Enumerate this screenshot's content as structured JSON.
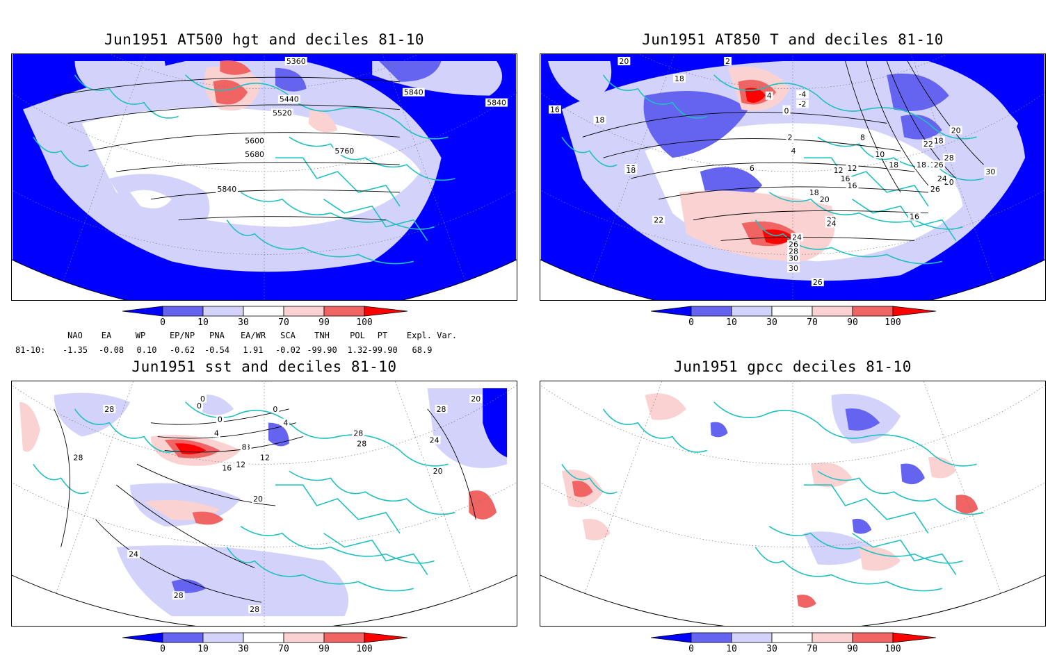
{
  "panels": [
    {
      "title": "Jun1951 AT500 hgt and deciles 81-10",
      "contour_labels": [
        "5360",
        "5440",
        "5520",
        "5600",
        "5680",
        "5760",
        "5840",
        "5840",
        "5840"
      ]
    },
    {
      "title": "Jun1951 AT850 T and deciles 81-10",
      "contour_labels": [
        "20",
        "18",
        "16",
        "18",
        "2",
        "4",
        "2",
        "-4",
        "-2",
        "0",
        "2",
        "4",
        "6",
        "8",
        "10",
        "12",
        "12",
        "16",
        "16",
        "18",
        "20",
        "22",
        "24",
        "26",
        "28",
        "30",
        "30",
        "26",
        "24",
        "22",
        "20",
        "18",
        "18",
        "16",
        "20",
        "26",
        "30",
        "28",
        "26",
        "24",
        "28",
        "22",
        "16",
        "18",
        "18"
      ]
    },
    {
      "title": "Jun1951 sst and deciles 81-10",
      "contour_labels": [
        "28",
        "28",
        "0",
        "0",
        "0",
        "4",
        "8",
        "12",
        "16",
        "20",
        "24",
        "28",
        "28",
        "28",
        "28",
        "20",
        "20",
        "24",
        "28",
        "4",
        "8",
        "12",
        "0"
      ]
    },
    {
      "title": "Jun1951 gpcc deciles 81-10",
      "contour_labels": []
    }
  ],
  "colorbar": {
    "ticks": [
      "0",
      "10",
      "30",
      "70",
      "90",
      "100"
    ],
    "colors": [
      "#0000ff",
      "#6464f0",
      "#d2d2fa",
      "#ffffff",
      "#fad2d2",
      "#f06464",
      "#ff0000"
    ]
  },
  "indices": {
    "header": [
      "NAO",
      "EA",
      "WP",
      "EP/NP",
      "PNA",
      "EA/WR",
      "SCA",
      "TNH",
      "POL",
      "PT",
      "Expl. Var."
    ],
    "row_label": "81-10:",
    "values": [
      "-1.35",
      "-0.08",
      "0.10",
      "-0.62",
      "-0.54",
      "1.91",
      "-0.02",
      "-99.90",
      "1.32",
      "-99.90",
      "68.9"
    ]
  },
  "colors": {
    "coast": "#20c0c0",
    "deep_blue": "#0000ff",
    "mid_blue": "#6464f0",
    "light_blue": "#d2d2fa",
    "light_red": "#fad2d2",
    "mid_red": "#f06464",
    "deep_red": "#ff0000"
  }
}
